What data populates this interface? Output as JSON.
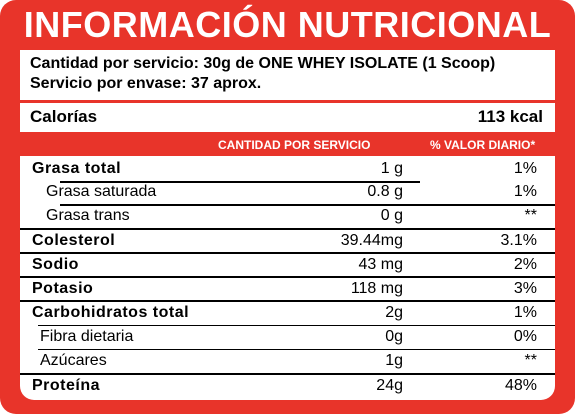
{
  "title": "INFORMACIÓN NUTRICIONAL",
  "serving": {
    "size_line": "Cantidad por servicio: 30g de ONE WHEY ISOLATE (1 Scoop)",
    "per_container_line": "Servicio por envase: 37 aprox."
  },
  "calories": {
    "label": "Calorías",
    "value": "113 kcal"
  },
  "columns": {
    "amount": "CANTIDAD POR SERVICIO",
    "daily_value": "% VALOR DIARIO*"
  },
  "rows": [
    {
      "name": "Grasa total",
      "amount": "1 g",
      "dv": "1%"
    },
    {
      "name": "Grasa saturada",
      "amount": "0.8 g",
      "dv": "1%"
    },
    {
      "name": "Grasa trans",
      "amount": "0 g",
      "dv": "**"
    },
    {
      "name": "Colesterol",
      "amount": "39.44mg",
      "dv": "3.1%"
    },
    {
      "name": "Sodio",
      "amount": "43 mg",
      "dv": "2%"
    },
    {
      "name": "Potasio",
      "amount": "118 mg",
      "dv": "3%"
    },
    {
      "name": "Carbohidratos total",
      "amount": "2g",
      "dv": "1%"
    },
    {
      "name": "Fibra dietaria",
      "amount": "0g",
      "dv": "0%"
    },
    {
      "name": "Azúcares",
      "amount": "1g",
      "dv": "**"
    },
    {
      "name": "Proteína",
      "amount": "24g",
      "dv": "48%"
    }
  ]
}
